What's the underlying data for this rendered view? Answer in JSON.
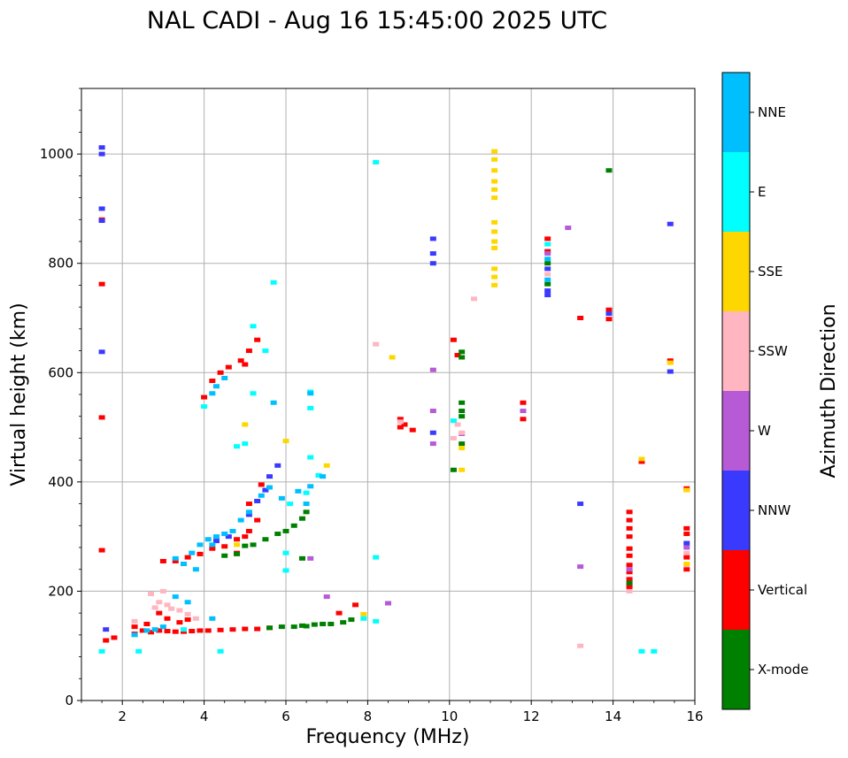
{
  "chart_data": {
    "type": "scatter",
    "title": "NAL CADI - Aug 16 15:45:00 2025 UTC",
    "xlabel": "Frequency (MHz)",
    "ylabel": "Virtual height (km)",
    "xlim": [
      1,
      16
    ],
    "ylim": [
      0,
      1120
    ],
    "xticks": [
      2,
      4,
      6,
      8,
      10,
      12,
      14,
      16
    ],
    "yticks": [
      0,
      200,
      400,
      600,
      800,
      1000
    ],
    "grid": true,
    "colorbar": {
      "title": "Azimuth Direction",
      "position": "right",
      "categories": [
        {
          "label": "X-mode",
          "color": "#008000"
        },
        {
          "label": "Vertical",
          "color": "#ff0000"
        },
        {
          "label": "NNW",
          "color": "#3a3aff"
        },
        {
          "label": "W",
          "color": "#b65ad6"
        },
        {
          "label": "SSW",
          "color": "#ffb6c1"
        },
        {
          "label": "SSE",
          "color": "#ffd700"
        },
        {
          "label": "E",
          "color": "#00ffff"
        },
        {
          "label": "NNE",
          "color": "#00bfff"
        }
      ]
    },
    "series": [
      {
        "name": "Vertical",
        "points": [
          [
            2.7,
            125
          ],
          [
            2.9,
            128
          ],
          [
            3.1,
            127
          ],
          [
            3.3,
            126
          ],
          [
            3.5,
            126
          ],
          [
            3.7,
            127
          ],
          [
            3.9,
            128
          ],
          [
            4.1,
            128
          ],
          [
            4.4,
            129
          ],
          [
            4.7,
            130
          ],
          [
            5.0,
            131
          ],
          [
            5.3,
            131
          ],
          [
            5.6,
            133
          ],
          [
            1.6,
            110
          ],
          [
            1.8,
            115
          ],
          [
            2.3,
            122
          ],
          [
            2.5,
            128
          ],
          [
            2.9,
            160
          ],
          [
            3.1,
            150
          ],
          [
            3.4,
            143
          ],
          [
            3.6,
            148
          ],
          [
            2.6,
            140
          ],
          [
            2.3,
            135
          ],
          [
            3.0,
            255
          ],
          [
            3.3,
            255
          ],
          [
            3.6,
            262
          ],
          [
            3.9,
            268
          ],
          [
            4.2,
            278
          ],
          [
            4.5,
            282
          ],
          [
            4.8,
            295
          ],
          [
            5.1,
            310
          ],
          [
            5.3,
            330
          ],
          [
            5.1,
            360
          ],
          [
            4.8,
            270
          ],
          [
            5.4,
            395
          ],
          [
            5.0,
            300
          ],
          [
            4.2,
            585
          ],
          [
            4.4,
            600
          ],
          [
            4.6,
            610
          ],
          [
            4.9,
            622
          ],
          [
            5.1,
            640
          ],
          [
            5.3,
            660
          ],
          [
            5.0,
            615
          ],
          [
            4.0,
            555
          ],
          [
            1.5,
            762
          ],
          [
            1.5,
            518
          ],
          [
            1.5,
            275
          ],
          [
            1.5,
            880
          ],
          [
            7.7,
            175
          ],
          [
            7.3,
            160
          ],
          [
            8.8,
            515
          ],
          [
            8.8,
            500
          ],
          [
            8.9,
            505
          ],
          [
            9.1,
            495
          ],
          [
            10.1,
            660
          ],
          [
            10.2,
            632
          ],
          [
            11.8,
            545
          ],
          [
            11.8,
            515
          ],
          [
            13.2,
            700
          ],
          [
            13.9,
            715
          ],
          [
            13.9,
            698
          ],
          [
            12.4,
            845
          ],
          [
            12.4,
            822
          ],
          [
            14.4,
            345
          ],
          [
            14.4,
            330
          ],
          [
            14.4,
            315
          ],
          [
            14.4,
            300
          ],
          [
            14.4,
            278
          ],
          [
            14.4,
            265
          ],
          [
            14.4,
            248
          ],
          [
            14.4,
            235
          ],
          [
            14.4,
            222
          ],
          [
            14.4,
            208
          ],
          [
            15.8,
            315
          ],
          [
            15.8,
            305
          ],
          [
            15.8,
            262
          ],
          [
            15.8,
            240
          ],
          [
            15.8,
            388
          ],
          [
            15.4,
            622
          ],
          [
            14.7,
            437
          ]
        ]
      },
      {
        "name": "X-mode",
        "points": [
          [
            5.6,
            133
          ],
          [
            5.9,
            135
          ],
          [
            6.2,
            135
          ],
          [
            6.5,
            136
          ],
          [
            6.7,
            139
          ],
          [
            6.9,
            140
          ],
          [
            7.1,
            140
          ],
          [
            7.4,
            143
          ],
          [
            7.6,
            148
          ],
          [
            6.4,
            137
          ],
          [
            5.2,
            285
          ],
          [
            5.5,
            295
          ],
          [
            5.8,
            305
          ],
          [
            6.0,
            310
          ],
          [
            6.2,
            320
          ],
          [
            6.4,
            333
          ],
          [
            6.5,
            345
          ],
          [
            4.5,
            265
          ],
          [
            4.8,
            268
          ],
          [
            5.0,
            283
          ],
          [
            6.4,
            260
          ],
          [
            10.3,
            638
          ],
          [
            10.3,
            628
          ],
          [
            10.3,
            545
          ],
          [
            10.3,
            530
          ],
          [
            10.3,
            520
          ],
          [
            10.3,
            470
          ],
          [
            10.1,
            422
          ],
          [
            13.9,
            970
          ],
          [
            12.4,
            762
          ],
          [
            12.4,
            800
          ],
          [
            14.4,
            215
          ]
        ]
      },
      {
        "name": "NNW",
        "points": [
          [
            1.5,
            1012
          ],
          [
            1.5,
            1000
          ],
          [
            1.5,
            900
          ],
          [
            1.5,
            878
          ],
          [
            1.5,
            638
          ],
          [
            1.6,
            130
          ],
          [
            5.1,
            340
          ],
          [
            5.3,
            365
          ],
          [
            5.5,
            385
          ],
          [
            5.6,
            410
          ],
          [
            5.8,
            430
          ],
          [
            4.6,
            300
          ],
          [
            4.3,
            292
          ],
          [
            9.6,
            845
          ],
          [
            9.6,
            818
          ],
          [
            9.6,
            800
          ],
          [
            9.6,
            490
          ],
          [
            12.4,
            790
          ],
          [
            12.4,
            750
          ],
          [
            12.4,
            742
          ],
          [
            13.2,
            360
          ],
          [
            15.4,
            872
          ],
          [
            15.4,
            602
          ],
          [
            15.8,
            288
          ],
          [
            13.9,
            708
          ]
        ]
      },
      {
        "name": "W",
        "points": [
          [
            6.6,
            260
          ],
          [
            7.0,
            190
          ],
          [
            8.5,
            178
          ],
          [
            9.6,
            605
          ],
          [
            9.6,
            530
          ],
          [
            9.6,
            470
          ],
          [
            10.3,
            488
          ],
          [
            12.4,
            818
          ],
          [
            12.9,
            865
          ],
          [
            13.2,
            245
          ],
          [
            14.4,
            240
          ],
          [
            11.8,
            530
          ],
          [
            15.8,
            280
          ]
        ]
      },
      {
        "name": "SSW",
        "points": [
          [
            2.9,
            180
          ],
          [
            3.1,
            175
          ],
          [
            3.2,
            168
          ],
          [
            3.4,
            165
          ],
          [
            3.6,
            158
          ],
          [
            3.8,
            150
          ],
          [
            2.3,
            145
          ],
          [
            2.7,
            195
          ],
          [
            3.0,
            200
          ],
          [
            2.8,
            170
          ],
          [
            8.2,
            652
          ],
          [
            10.1,
            480
          ],
          [
            10.2,
            505
          ],
          [
            10.3,
            490
          ],
          [
            10.6,
            735
          ],
          [
            13.2,
            100
          ],
          [
            14.4,
            200
          ],
          [
            15.8,
            270
          ],
          [
            15.8,
            248
          ],
          [
            8.8,
            510
          ],
          [
            12.4,
            780
          ]
        ]
      },
      {
        "name": "SSE",
        "points": [
          [
            11.1,
            1005
          ],
          [
            11.1,
            990
          ],
          [
            11.1,
            970
          ],
          [
            11.1,
            950
          ],
          [
            11.1,
            935
          ],
          [
            11.1,
            920
          ],
          [
            11.1,
            875
          ],
          [
            11.1,
            858
          ],
          [
            11.1,
            840
          ],
          [
            11.1,
            828
          ],
          [
            11.1,
            790
          ],
          [
            11.1,
            775
          ],
          [
            11.1,
            760
          ],
          [
            8.6,
            628
          ],
          [
            10.3,
            422
          ],
          [
            10.3,
            462
          ],
          [
            5.0,
            505
          ],
          [
            6.0,
            475
          ],
          [
            7.0,
            430
          ],
          [
            4.8,
            285
          ],
          [
            7.9,
            158
          ],
          [
            15.8,
            250
          ],
          [
            14.7,
            442
          ],
          [
            15.8,
            385
          ],
          [
            15.4,
            618
          ]
        ]
      },
      {
        "name": "E",
        "points": [
          [
            8.2,
            985
          ],
          [
            5.7,
            765
          ],
          [
            5.2,
            685
          ],
          [
            5.5,
            640
          ],
          [
            5.2,
            562
          ],
          [
            4.0,
            538
          ],
          [
            6.6,
            565
          ],
          [
            6.6,
            535
          ],
          [
            4.8,
            465
          ],
          [
            5.0,
            470
          ],
          [
            8.2,
            262
          ],
          [
            8.2,
            145
          ],
          [
            7.9,
            150
          ],
          [
            10.1,
            512
          ],
          [
            2.4,
            90
          ],
          [
            4.4,
            90
          ],
          [
            6.6,
            445
          ],
          [
            6.8,
            412
          ],
          [
            6.5,
            380
          ],
          [
            6.1,
            360
          ],
          [
            6.0,
            270
          ],
          [
            6.0,
            238
          ],
          [
            14.7,
            90
          ],
          [
            15.0,
            90
          ],
          [
            12.4,
            835
          ],
          [
            1.5,
            90
          ],
          [
            3.5,
            130
          ]
        ]
      },
      {
        "name": "NNE",
        "points": [
          [
            2.3,
            120
          ],
          [
            2.6,
            128
          ],
          [
            2.8,
            130
          ],
          [
            3.0,
            135
          ],
          [
            3.3,
            190
          ],
          [
            3.6,
            180
          ],
          [
            4.2,
            150
          ],
          [
            3.3,
            260
          ],
          [
            3.5,
            250
          ],
          [
            3.7,
            270
          ],
          [
            3.9,
            285
          ],
          [
            4.1,
            295
          ],
          [
            4.3,
            300
          ],
          [
            4.5,
            305
          ],
          [
            4.7,
            310
          ],
          [
            4.9,
            330
          ],
          [
            5.1,
            345
          ],
          [
            5.4,
            375
          ],
          [
            5.6,
            390
          ],
          [
            5.9,
            370
          ],
          [
            6.3,
            383
          ],
          [
            6.6,
            392
          ],
          [
            6.9,
            410
          ],
          [
            4.2,
            285
          ],
          [
            3.8,
            240
          ],
          [
            4.3,
            575
          ],
          [
            4.5,
            590
          ],
          [
            4.2,
            562
          ],
          [
            6.6,
            562
          ],
          [
            5.7,
            545
          ],
          [
            12.4,
            808
          ],
          [
            12.4,
            770
          ],
          [
            6.5,
            360
          ]
        ]
      }
    ]
  }
}
